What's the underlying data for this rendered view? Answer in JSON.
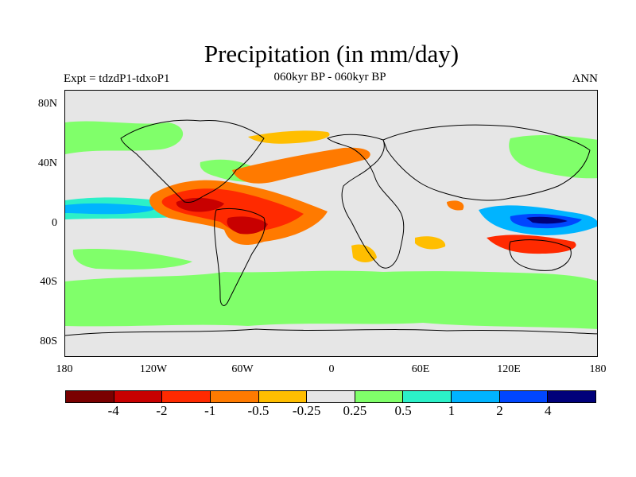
{
  "figure": {
    "title": "Precipitation (in mm/day)",
    "left_label": "Expt = tdzdP1-tdxoP1",
    "center_label": "060kyr BP - 060kyr BP",
    "right_label": "ANN"
  },
  "map": {
    "projection": "cylindrical equidistant",
    "lon_range": [
      -180,
      180
    ],
    "lat_range": [
      -90,
      90
    ],
    "background_value": "near zero (-0.25 to 0.25)",
    "y_ticks": [
      "80N",
      "40N",
      "0",
      "40S",
      "80S"
    ],
    "x_ticks": [
      "180",
      "120W",
      "60W",
      "0",
      "60E",
      "120E",
      "180"
    ]
  },
  "colorbar": {
    "colors": [
      "#7a0000",
      "#c80000",
      "#ff2a00",
      "#ff7a00",
      "#ffbe00",
      "#e6e6e6",
      "#80ff6a",
      "#2cf0c8",
      "#00b4ff",
      "#0046ff",
      "#00007a"
    ],
    "labels": [
      "-4",
      "-2",
      "-1",
      "-0.5",
      "-0.25",
      "0.25",
      "0.5",
      "1",
      "2",
      "4"
    ]
  },
  "chart_data": {
    "type": "heatmap",
    "title": "Precipitation (in mm/day)",
    "subtitle": "060kyr BP - 060kyr BP",
    "variable": "annual mean precipitation difference",
    "units": "mm/day",
    "contour_levels": [
      -4,
      -2,
      -1,
      -0.5,
      -0.25,
      0.25,
      0.5,
      1,
      2,
      4
    ],
    "features": [
      {
        "region": "tropical Atlantic / northern South America",
        "sign": "negative",
        "approx": "-1 to -4"
      },
      {
        "region": "eastern tropical Pacific near Central America",
        "sign": "negative",
        "approx": "-2 to -4"
      },
      {
        "region": "North Atlantic storm track",
        "sign": "negative",
        "approx": "-0.5 to -1"
      },
      {
        "region": "western equatorial Pacific / Maritime Continent",
        "sign": "positive",
        "approx": "1 to 4"
      },
      {
        "region": "central equatorial Pacific band",
        "sign": "positive",
        "approx": "0.25 to 1"
      },
      {
        "region": "Southern Ocean belt",
        "sign": "positive",
        "approx": "0.25 to 0.5"
      },
      {
        "region": "northern Australia / Indonesia",
        "sign": "negative",
        "approx": "-0.5 to -2"
      }
    ]
  }
}
